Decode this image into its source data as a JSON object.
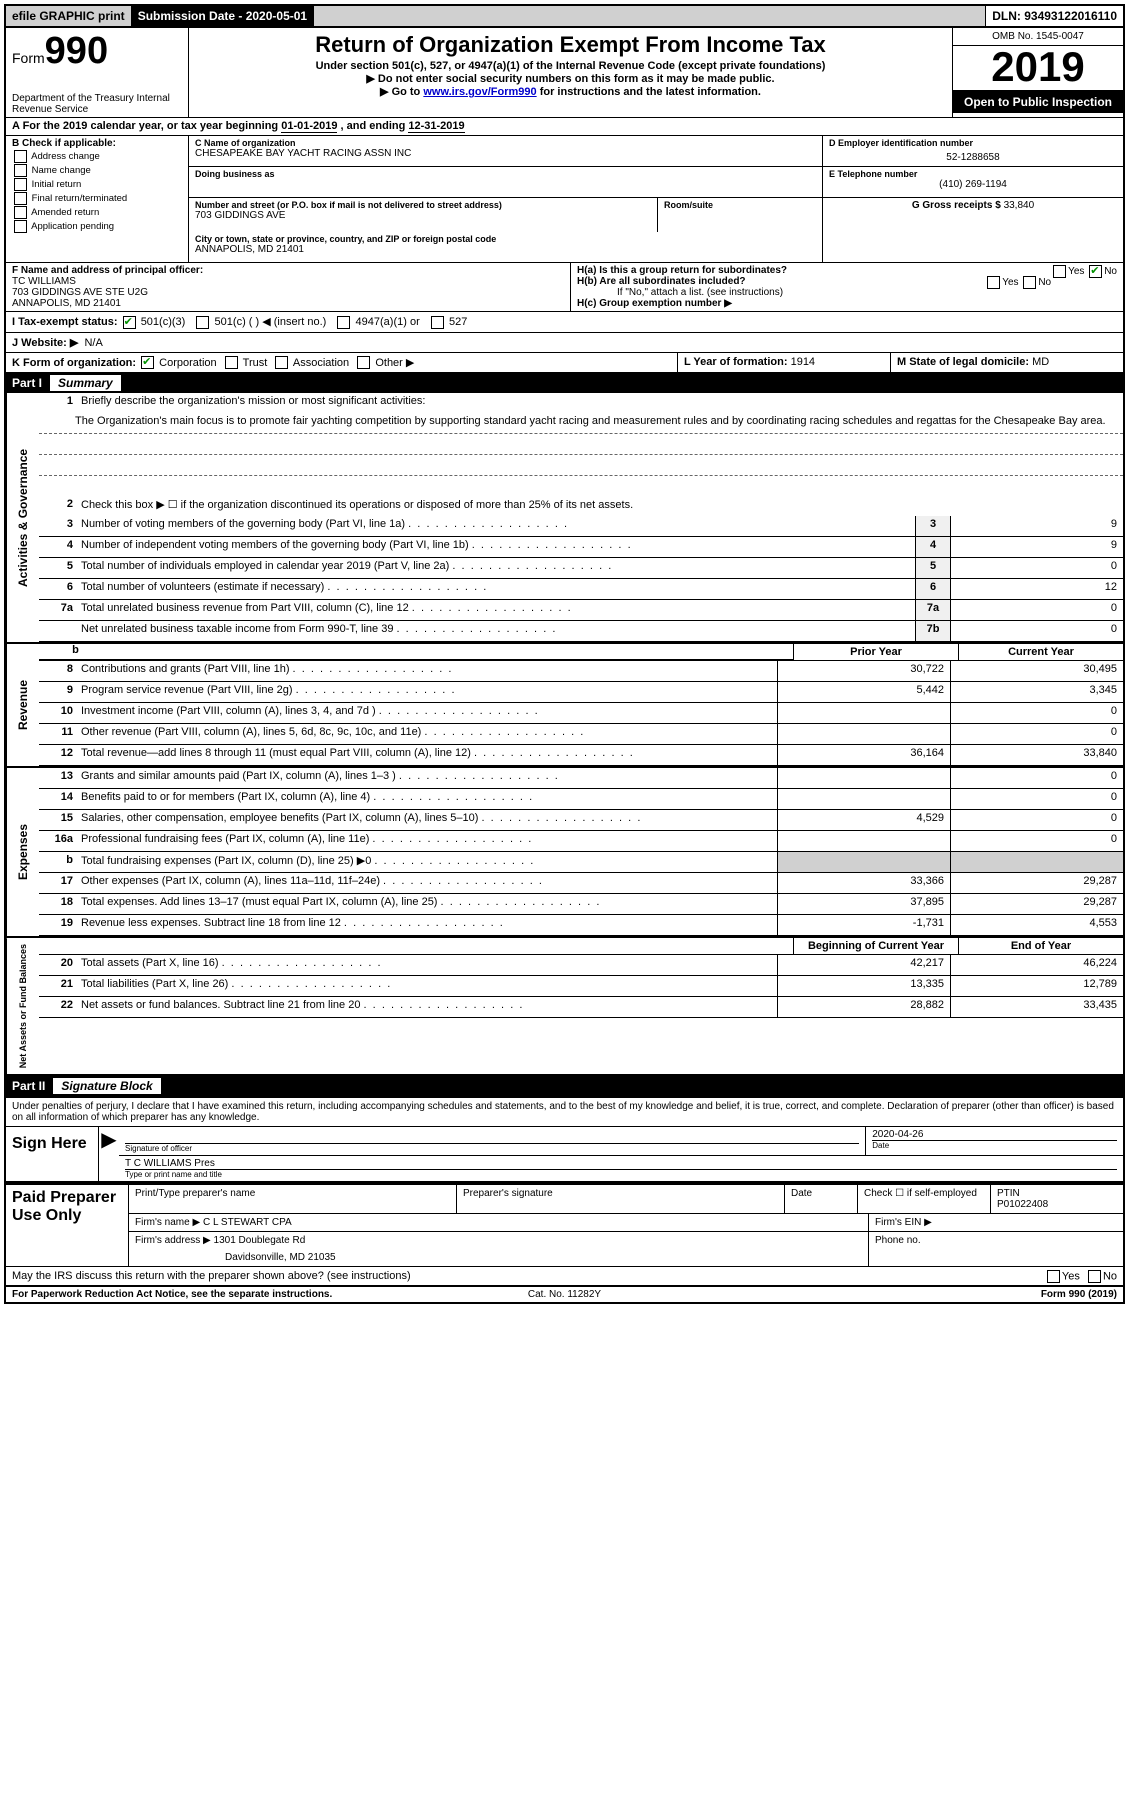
{
  "topbar": {
    "efile": "efile GRAPHIC print",
    "sub_label": "Submission Date - 2020-05-01",
    "dln": "DLN: 93493122016110"
  },
  "header": {
    "form_label": "Form",
    "form_num": "990",
    "title": "Return of Organization Exempt From Income Tax",
    "sub1": "Under section 501(c), 527, or 4947(a)(1) of the Internal Revenue Code (except private foundations)",
    "sub2": "▶ Do not enter social security numbers on this form as it may be made public.",
    "sub3_pre": "▶ Go to ",
    "sub3_link": "www.irs.gov/Form990",
    "sub3_post": " for instructions and the latest information.",
    "dept": "Department of the Treasury\nInternal Revenue Service",
    "omb": "OMB No. 1545-0047",
    "year": "2019",
    "open": "Open to Public Inspection"
  },
  "lineA": {
    "text_pre": "A For the 2019 calendar year, or tax year beginning ",
    "begin": "01-01-2019",
    "mid": " , and ending ",
    "end": "12-31-2019"
  },
  "colB": {
    "hdr": "B Check if applicable:",
    "opts": [
      "Address change",
      "Name change",
      "Initial return",
      "Final return/terminated",
      "Amended return",
      "Application pending"
    ]
  },
  "colC": {
    "name_lbl": "C Name of organization",
    "name": "CHESAPEAKE BAY YACHT RACING ASSN INC",
    "dba_lbl": "Doing business as",
    "dba": "",
    "addr_lbl": "Number and street (or P.O. box if mail is not delivered to street address)",
    "addr": "703 GIDDINGS AVE",
    "room_lbl": "Room/suite",
    "room": "",
    "city_lbl": "City or town, state or province, country, and ZIP or foreign postal code",
    "city": "ANNAPOLIS, MD  21401"
  },
  "colD": {
    "lbl": "D Employer identification number",
    "val": "52-1288658"
  },
  "colE": {
    "lbl": "E Telephone number",
    "val": "(410) 269-1194"
  },
  "colG": {
    "lbl": "G Gross receipts $ ",
    "val": "33,840"
  },
  "colF": {
    "lbl": "F Name and address of principal officer:",
    "name": "TC WILLIAMS",
    "addr1": "703 GIDDINGS AVE STE U2G",
    "addr2": "ANNAPOLIS, MD  21401"
  },
  "colH": {
    "a": "H(a)  Is this a group return for subordinates?",
    "b": "H(b)  Are all subordinates included?",
    "b_note": "If \"No,\" attach a list. (see instructions)",
    "c": "H(c)  Group exemption number ▶"
  },
  "rowI": {
    "lbl": "I  Tax-exempt status:",
    "opts": [
      "501(c)(3)",
      "501(c) (  ) ◀ (insert no.)",
      "4947(a)(1) or",
      "527"
    ]
  },
  "rowJ": {
    "lbl": "J  Website: ▶",
    "val": "N/A"
  },
  "rowK": {
    "lbl": "K Form of organization:",
    "opts": [
      "Corporation",
      "Trust",
      "Association",
      "Other ▶"
    ],
    "l_lbl": "L Year of formation:",
    "l_val": "1914",
    "m_lbl": "M State of legal domicile:",
    "m_val": "MD"
  },
  "part1": {
    "hdr": "Part I",
    "title": "Summary"
  },
  "summary": {
    "q1_lbl": "1",
    "q1": "Briefly describe the organization's mission or most significant activities:",
    "q1_text": "The Organization's main focus is to promote fair yachting competition by supporting standard yacht racing and measurement rules and by coordinating racing schedules and regattas for the Chesapeake Bay area.",
    "q2_lbl": "2",
    "q2": "Check this box ▶ ☐ if the organization discontinued its operations or disposed of more than 25% of its net assets.",
    "lines_ag": [
      {
        "n": "3",
        "d": "Number of voting members of the governing body (Part VI, line 1a)",
        "box": "3",
        "v": "9"
      },
      {
        "n": "4",
        "d": "Number of independent voting members of the governing body (Part VI, line 1b)",
        "box": "4",
        "v": "9"
      },
      {
        "n": "5",
        "d": "Total number of individuals employed in calendar year 2019 (Part V, line 2a)",
        "box": "5",
        "v": "0"
      },
      {
        "n": "6",
        "d": "Total number of volunteers (estimate if necessary)",
        "box": "6",
        "v": "12"
      },
      {
        "n": "7a",
        "d": "Total unrelated business revenue from Part VIII, column (C), line 12",
        "box": "7a",
        "v": "0"
      },
      {
        "n": "",
        "d": "Net unrelated business taxable income from Form 990-T, line 39",
        "box": "7b",
        "v": "0"
      }
    ],
    "col_hdr_prior": "Prior Year",
    "col_hdr_curr": "Current Year",
    "rev": [
      {
        "n": "8",
        "d": "Contributions and grants (Part VIII, line 1h)",
        "p": "30,722",
        "c": "30,495"
      },
      {
        "n": "9",
        "d": "Program service revenue (Part VIII, line 2g)",
        "p": "5,442",
        "c": "3,345"
      },
      {
        "n": "10",
        "d": "Investment income (Part VIII, column (A), lines 3, 4, and 7d )",
        "p": "",
        "c": "0"
      },
      {
        "n": "11",
        "d": "Other revenue (Part VIII, column (A), lines 5, 6d, 8c, 9c, 10c, and 11e)",
        "p": "",
        "c": "0"
      },
      {
        "n": "12",
        "d": "Total revenue—add lines 8 through 11 (must equal Part VIII, column (A), line 12)",
        "p": "36,164",
        "c": "33,840"
      }
    ],
    "exp": [
      {
        "n": "13",
        "d": "Grants and similar amounts paid (Part IX, column (A), lines 1–3 )",
        "p": "",
        "c": "0"
      },
      {
        "n": "14",
        "d": "Benefits paid to or for members (Part IX, column (A), line 4)",
        "p": "",
        "c": "0"
      },
      {
        "n": "15",
        "d": "Salaries, other compensation, employee benefits (Part IX, column (A), lines 5–10)",
        "p": "4,529",
        "c": "0"
      },
      {
        "n": "16a",
        "d": "Professional fundraising fees (Part IX, column (A), line 11e)",
        "p": "",
        "c": "0"
      },
      {
        "n": "b",
        "d": "Total fundraising expenses (Part IX, column (D), line 25) ▶0",
        "p": "shade",
        "c": "shade"
      },
      {
        "n": "17",
        "d": "Other expenses (Part IX, column (A), lines 11a–11d, 11f–24e)",
        "p": "33,366",
        "c": "29,287"
      },
      {
        "n": "18",
        "d": "Total expenses. Add lines 13–17 (must equal Part IX, column (A), line 25)",
        "p": "37,895",
        "c": "29,287"
      },
      {
        "n": "19",
        "d": "Revenue less expenses. Subtract line 18 from line 12",
        "p": "-1,731",
        "c": "4,553"
      }
    ],
    "col_hdr_boy": "Beginning of Current Year",
    "col_hdr_eoy": "End of Year",
    "na": [
      {
        "n": "20",
        "d": "Total assets (Part X, line 16)",
        "p": "42,217",
        "c": "46,224"
      },
      {
        "n": "21",
        "d": "Total liabilities (Part X, line 26)",
        "p": "13,335",
        "c": "12,789"
      },
      {
        "n": "22",
        "d": "Net assets or fund balances. Subtract line 21 from line 20",
        "p": "28,882",
        "c": "33,435"
      }
    ]
  },
  "sidebars": {
    "ag": "Activities & Governance",
    "rev": "Revenue",
    "exp": "Expenses",
    "na": "Net Assets or Fund Balances"
  },
  "part2": {
    "hdr": "Part II",
    "title": "Signature Block"
  },
  "sig": {
    "decl": "Under penalties of perjury, I declare that I have examined this return, including accompanying schedules and statements, and to the best of my knowledge and belief, it is true, correct, and complete. Declaration of preparer (other than officer) is based on all information of which preparer has any knowledge.",
    "here": "Sign Here",
    "sig_lbl": "Signature of officer",
    "date_lbl": "Date",
    "date": "2020-04-26",
    "name": "T C WILLIAMS  Pres",
    "name_lbl": "Type or print name and title"
  },
  "paid": {
    "hdr": "Paid Preparer Use Only",
    "r1": {
      "a": "Print/Type preparer's name",
      "b": "Preparer's signature",
      "c": "Date",
      "d": "Check ☐ if self-employed",
      "e": "PTIN",
      "e_val": "P01022408"
    },
    "r2": {
      "a": "Firm's name    ▶",
      "a_val": "C L STEWART CPA",
      "b": "Firm's EIN ▶"
    },
    "r3": {
      "a": "Firm's address ▶",
      "a_val": "1301 Doublegate Rd",
      "b": "Phone no."
    },
    "r3b": "Davidsonville, MD  21035",
    "discuss": "May the IRS discuss this return with the preparer shown above? (see instructions)"
  },
  "footer": {
    "left": "For Paperwork Reduction Act Notice, see the separate instructions.",
    "mid": "Cat. No. 11282Y",
    "right": "Form 990 (2019)"
  }
}
